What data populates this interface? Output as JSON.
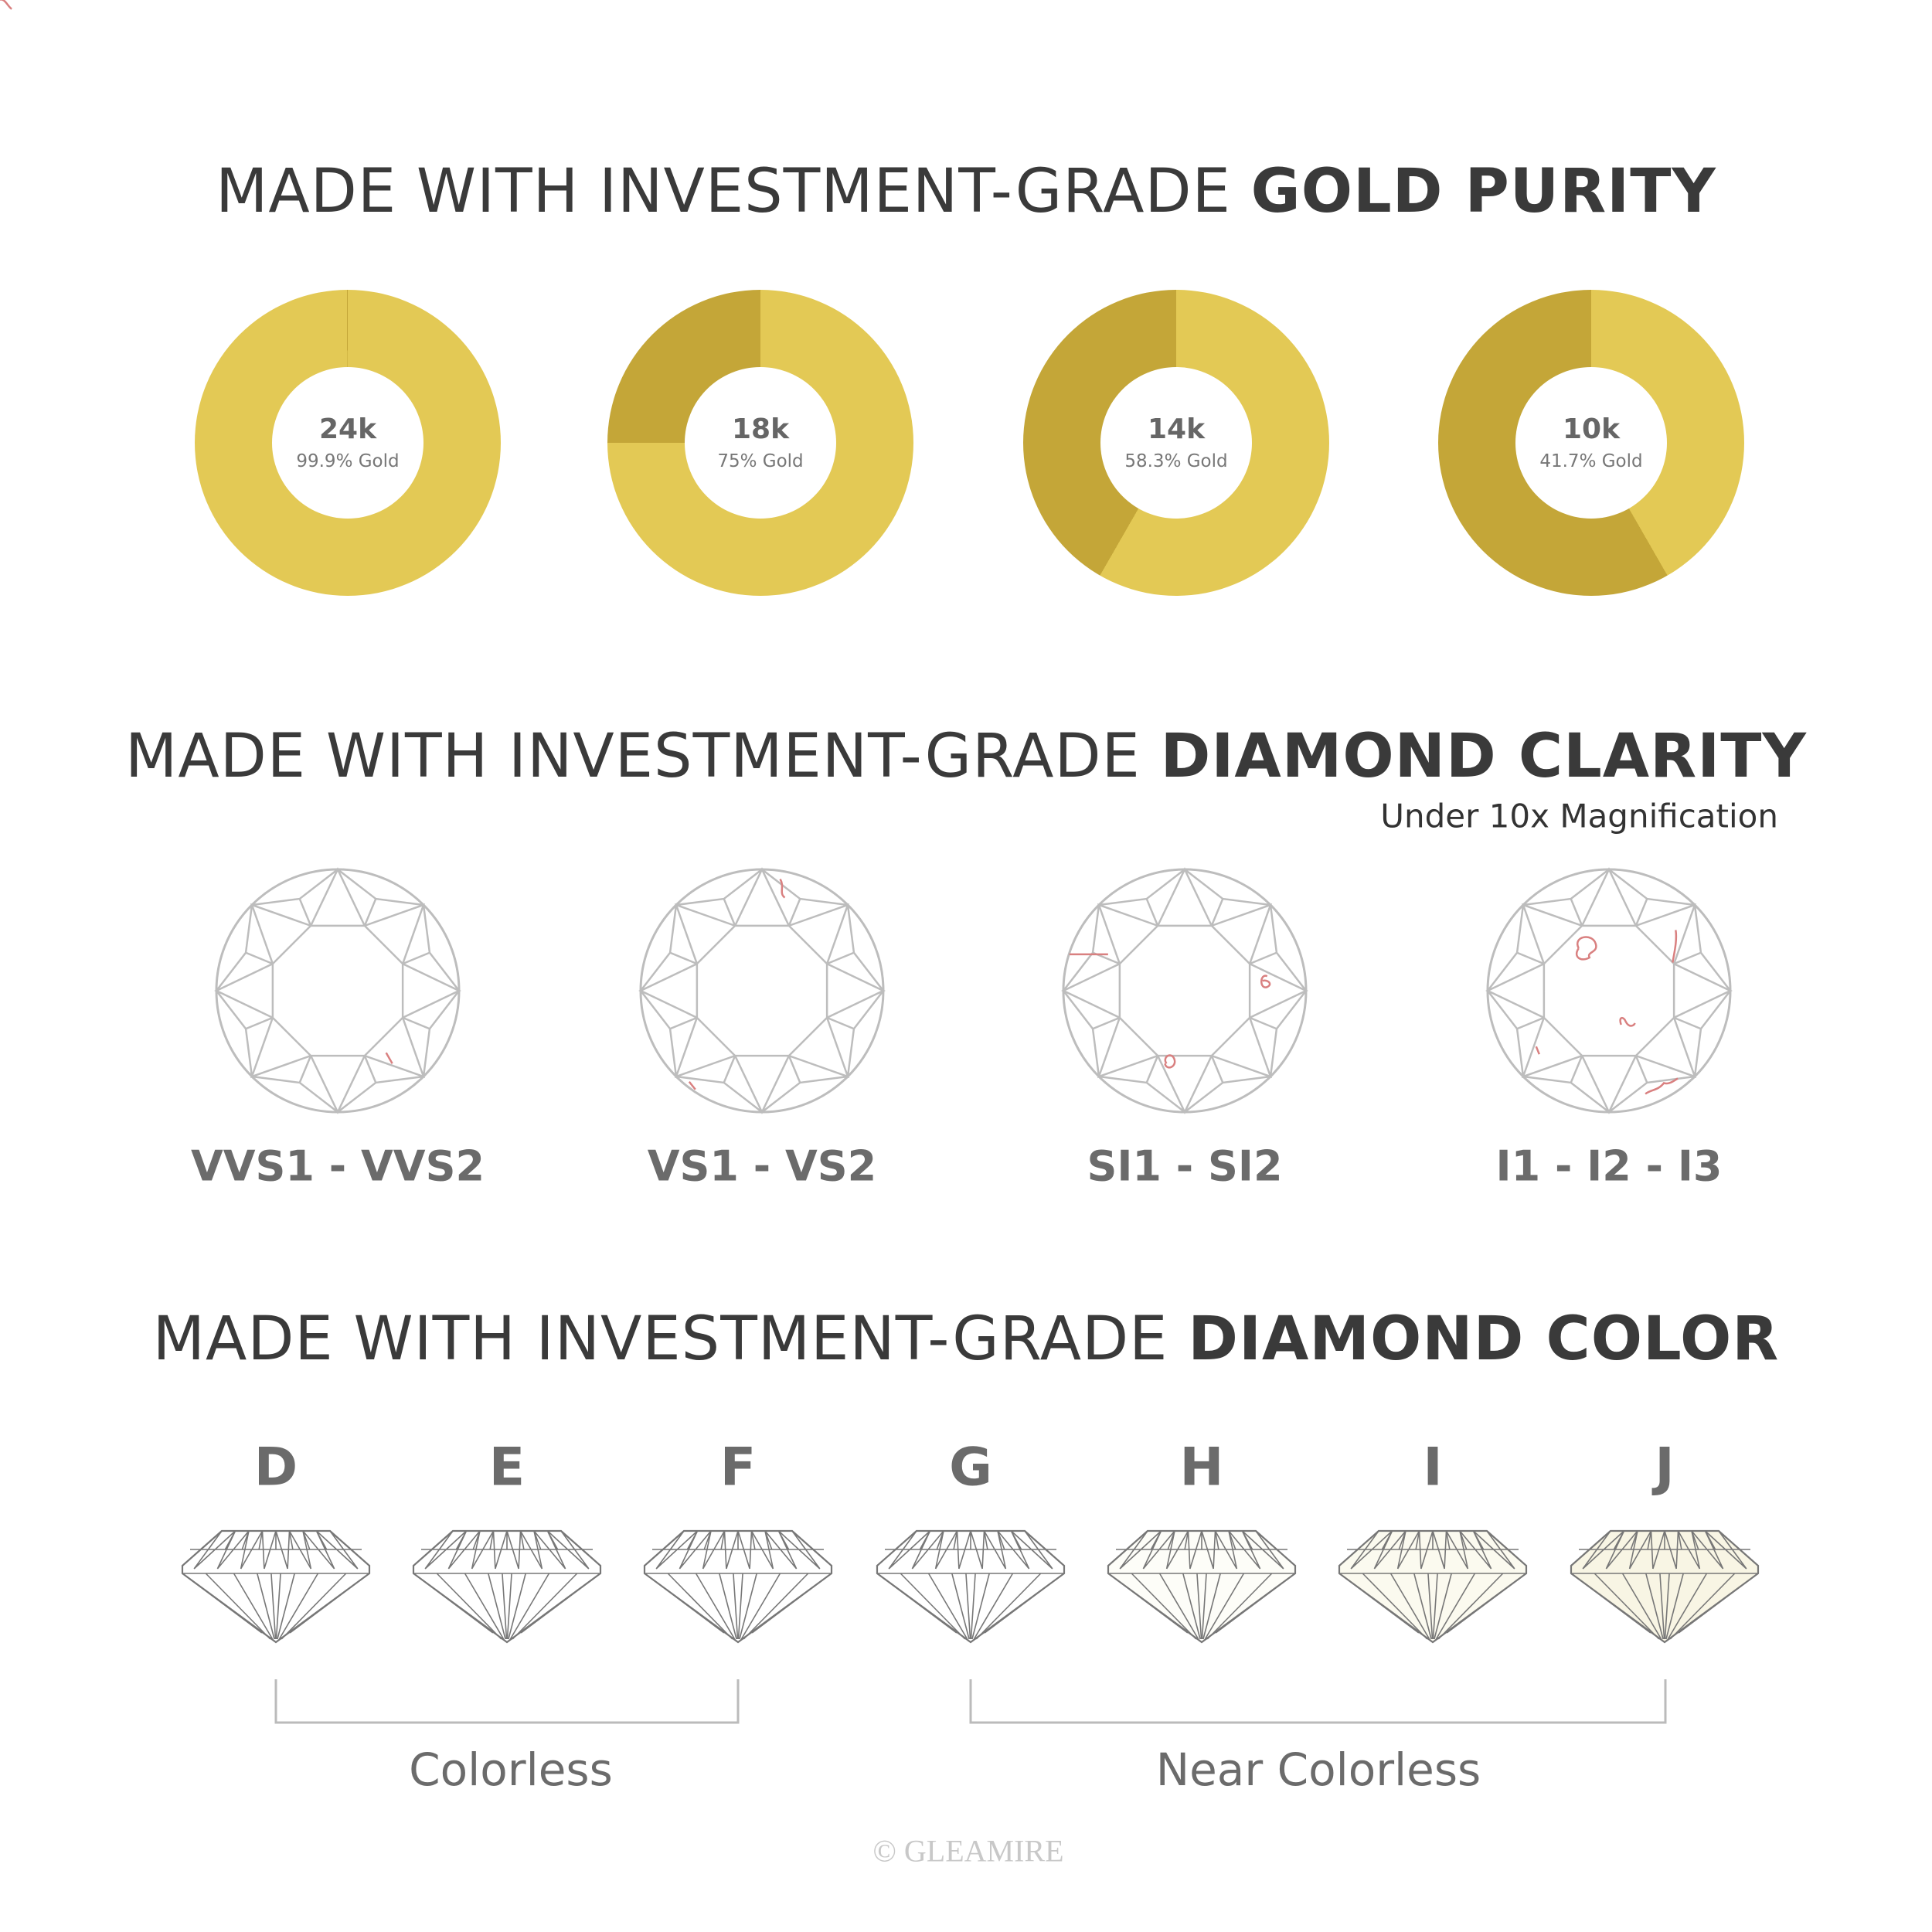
{
  "watermark": "GLEAMIRE",
  "colors": {
    "gold_light": "#E3C955",
    "gold_dark": "#C4A638",
    "text": "#3a3a3a",
    "label": "#6b6b6b",
    "outline": "#bdbdbd",
    "inclusion": "#d98080"
  },
  "gold_section": {
    "title_regular": "MADE WITH INVESTMENT-GRADE ",
    "title_bold": "GOLD PURITY"
  },
  "chart_data": {
    "type": "pie",
    "charts": [
      {
        "label": "24k",
        "caption": "99.9% Gold",
        "gold_percent": 99.9
      },
      {
        "label": "18k",
        "caption": "75% Gold",
        "gold_percent": 75
      },
      {
        "label": "14k",
        "caption": "58.3% Gold",
        "gold_percent": 58.3
      },
      {
        "label": "10k",
        "caption": "41.7% Gold",
        "gold_percent": 41.7
      }
    ]
  },
  "clarity_section": {
    "title_regular": "MADE WITH INVESTMENT-GRADE ",
    "title_bold": "DIAMOND CLARITY",
    "subtitle": "Under 10x Magnification",
    "grades": [
      {
        "label": "VVS1 - VVS2"
      },
      {
        "label": "VS1 - VS2"
      },
      {
        "label": "SI1 - SI2"
      },
      {
        "label": "I1 - I2 - I3"
      }
    ]
  },
  "color_section": {
    "title_regular": "MADE WITH INVESTMENT-GRADE ",
    "title_bold": "DIAMOND COLOR",
    "grades": [
      {
        "letter": "D",
        "tint": "#ffffff"
      },
      {
        "letter": "E",
        "tint": "#ffffff"
      },
      {
        "letter": "F",
        "tint": "#ffffff"
      },
      {
        "letter": "G",
        "tint": "#ffffff"
      },
      {
        "letter": "H",
        "tint": "#fdfdf8"
      },
      {
        "letter": "I",
        "tint": "#fbfaef"
      },
      {
        "letter": "J",
        "tint": "#f8f5e4"
      }
    ],
    "groups": [
      {
        "label": "Colorless"
      },
      {
        "label": "Near Colorless"
      }
    ]
  },
  "footer": "© GLEAMIRE"
}
